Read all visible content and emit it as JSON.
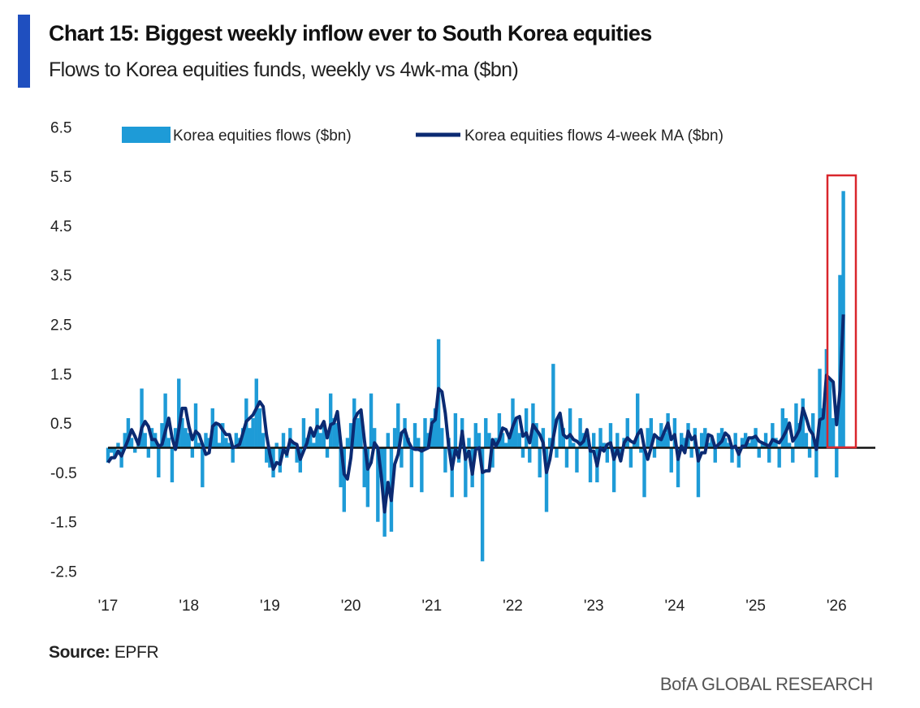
{
  "title": "Chart 15: Biggest weekly inflow ever to South Korea equities",
  "subtitle": "Flows to Korea equities funds, weekly vs 4wk-ma ($bn)",
  "source_label": "Source:",
  "source_value": "EPFR",
  "brand": "BofA GLOBAL RESEARCH",
  "colors": {
    "bars": "#1e9bd7",
    "ma": "#0b2a72",
    "accent": "#1f4fbf",
    "highlight": "#d9262c",
    "zero": "#111111"
  },
  "chart_data": {
    "type": "bar",
    "title": "Chart 15: Biggest weekly inflow ever to South Korea equities",
    "xlabel": "",
    "ylabel": "$bn",
    "ylim": [
      -2.5,
      6.5
    ],
    "yticks": [
      "6.5",
      "5.5",
      "4.5",
      "3.5",
      "2.5",
      "1.5",
      "0.5",
      "-0.5",
      "-1.5",
      "-2.5"
    ],
    "ytick_values": [
      6.5,
      5.5,
      4.5,
      3.5,
      2.5,
      1.5,
      0.5,
      -0.5,
      -1.5,
      -2.5
    ],
    "xticks": [
      "'17",
      "'18",
      "'19",
      "'20",
      "'21",
      "'22",
      "'23",
      "'24",
      "'25",
      "'26"
    ],
    "xtick_values": [
      2017,
      2018,
      2019,
      2020,
      2021,
      2022,
      2023,
      2024,
      2025,
      2026
    ],
    "legend": [
      "Korea equities flows ($bn)",
      "Korea equities flows 4-week MA ($bn)"
    ],
    "legend_position": "top",
    "start": 2017.0,
    "samples_per_year": 24,
    "ma_samples": 3,
    "series": [
      {
        "name": "Korea equities flows ($bn)",
        "values": [
          -0.3,
          -0.1,
          -0.2,
          0.1,
          -0.4,
          0.3,
          0.6,
          0.2,
          -0.1,
          0.1,
          1.2,
          0.3,
          -0.2,
          0.4,
          0.3,
          -0.6,
          0.5,
          1.1,
          0.2,
          -0.7,
          0.4,
          1.4,
          0.6,
          0.4,
          0.3,
          -0.2,
          0.9,
          0.1,
          -0.8,
          0.3,
          0.2,
          0.8,
          0.5,
          0.1,
          0.5,
          0.2,
          0.1,
          -0.3,
          0.3,
          0.2,
          0.4,
          1.0,
          0.4,
          0.6,
          1.4,
          0.8,
          0.3,
          -0.3,
          -0.4,
          -0.6,
          0.1,
          -0.5,
          0.3,
          -0.2,
          0.4,
          0.1,
          -0.3,
          -0.5,
          0.6,
          0.2,
          0.4,
          0.1,
          0.8,
          0.3,
          0.5,
          -0.2,
          1.1,
          0.6,
          0.5,
          -0.8,
          -1.3,
          0.2,
          0.5,
          1.0,
          0.6,
          0.7,
          -0.8,
          -1.2,
          1.1,
          0.4,
          -1.5,
          -0.6,
          -1.8,
          0.3,
          -1.7,
          0.4,
          0.9,
          -0.4,
          0.6,
          0.2,
          -0.8,
          0.5,
          0.2,
          -0.9,
          0.6,
          0.3,
          0.6,
          0.8,
          2.2,
          0.4,
          -0.5,
          0.2,
          -1.0,
          0.7,
          -0.3,
          0.6,
          -1.0,
          0.2,
          -0.8,
          0.5,
          0.3,
          -2.3,
          0.6,
          0.3,
          -0.4,
          0.2,
          0.7,
          0.3,
          0.1,
          0.2,
          1.0,
          0.6,
          0.3,
          -0.2,
          0.8,
          -0.3,
          0.9,
          0.5,
          -0.6,
          0.4,
          -1.3,
          0.2,
          1.7,
          -0.2,
          0.6,
          0.4,
          -0.4,
          0.8,
          0.1,
          -0.5,
          0.6,
          0.3,
          0.2,
          -0.7,
          0.3,
          -0.7,
          0.4,
          0.1,
          -0.3,
          0.5,
          -0.9,
          0.3,
          -0.2,
          0.2,
          0.6,
          -0.4,
          0.1,
          1.1,
          -0.1,
          -1.0,
          0.4,
          0.6,
          -0.2,
          0.2,
          0.5,
          0.3,
          0.7,
          -0.5,
          0.6,
          -0.8,
          0.3,
          0.2,
          0.5,
          -0.2,
          0.4,
          -1.0,
          0.3,
          0.4,
          0.1,
          0.2,
          -0.3,
          0.3,
          0.4,
          0.2,
          0.1,
          -0.3,
          0.3,
          -0.4,
          0.2,
          0.3,
          0.1,
          0.2,
          0.4,
          -0.2,
          0.1,
          0.3,
          -0.3,
          0.5,
          0.2,
          -0.4,
          0.8,
          0.6,
          0.1,
          -0.3,
          0.9,
          0.5,
          1.0,
          0.3,
          -0.2,
          0.7,
          -0.6,
          1.6,
          0.8,
          2.0,
          1.4,
          0.6,
          -0.6,
          3.5,
          5.2
        ]
      }
    ],
    "annotation": "highlight box around latest weeks (2026)"
  }
}
